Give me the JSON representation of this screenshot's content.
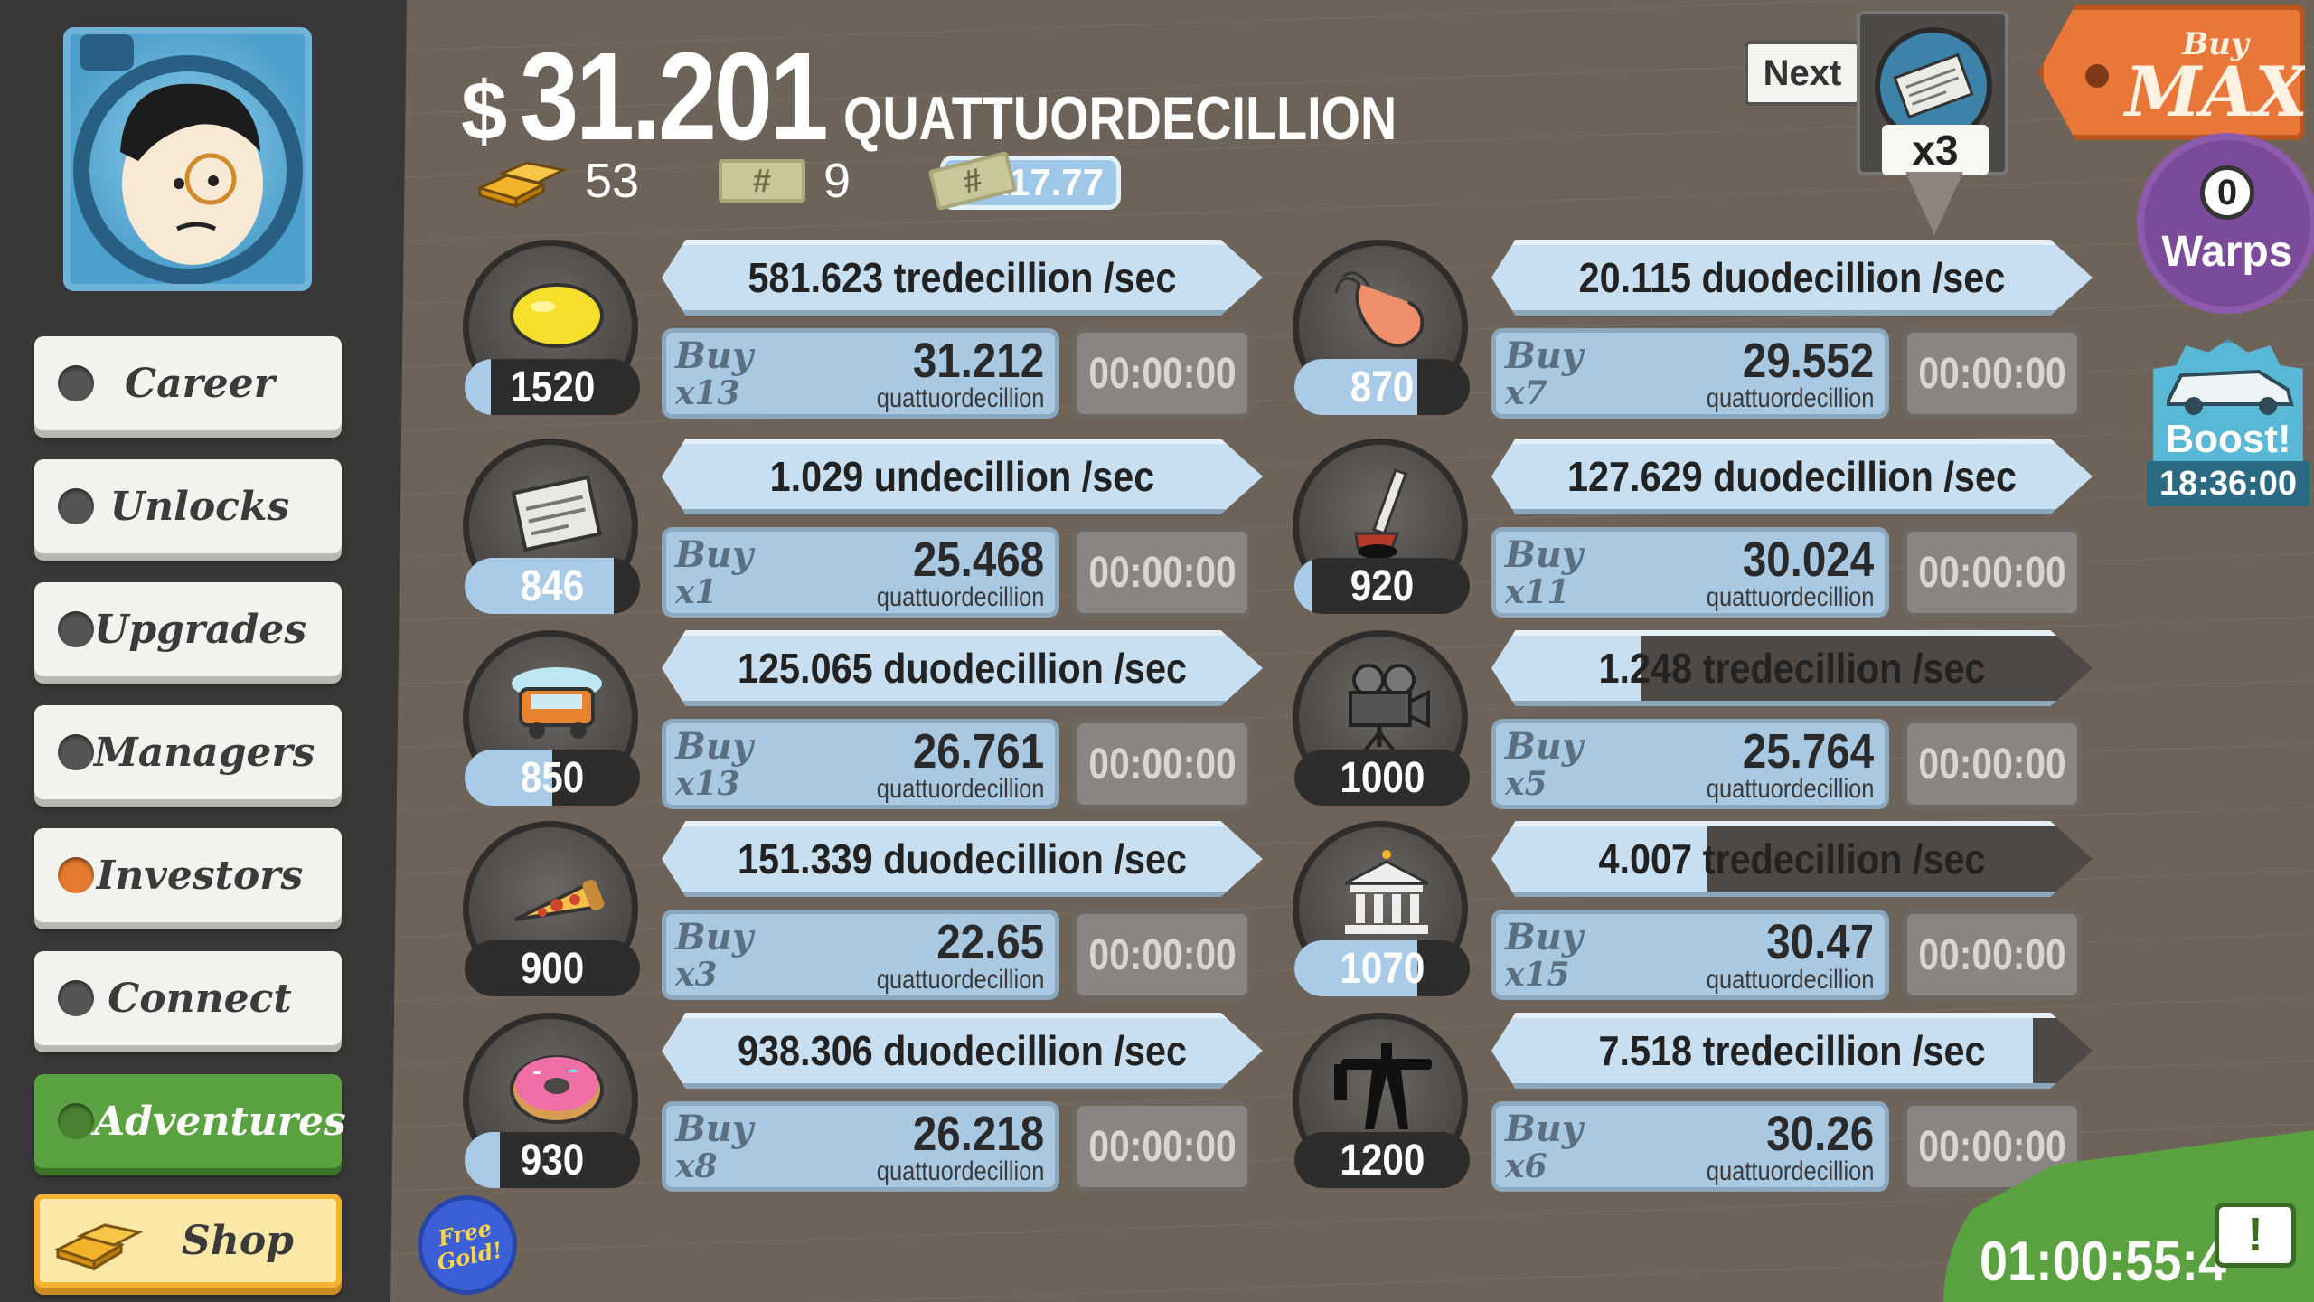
{
  "header": {
    "currency_symbol": "$",
    "money_amount": "31.201",
    "money_unit": "QUATTUORDECILLION",
    "gold_count": "53",
    "megaticket_count": "9",
    "multiplier": "x17.77",
    "ticket_symbol": "#"
  },
  "next": {
    "label": "Next",
    "multiplier": "x3",
    "icon": "newspaper-icon"
  },
  "buy_max": {
    "line1": "Buy",
    "line2": "MAX"
  },
  "warps": {
    "count": "0",
    "label": "Warps"
  },
  "boost": {
    "label": "Boost!",
    "timer": "18:36:00",
    "icon": "car-icon"
  },
  "corner_timer": "01:00:55:4",
  "sidebar": {
    "items": [
      {
        "label": "Career",
        "style": "normal"
      },
      {
        "label": "Unlocks",
        "style": "normal"
      },
      {
        "label": "Upgrades",
        "style": "normal"
      },
      {
        "label": "Managers",
        "style": "normal"
      },
      {
        "label": "Investors",
        "style": "orange"
      },
      {
        "label": "Connect",
        "style": "normal"
      },
      {
        "label": "Adventures",
        "style": "green"
      }
    ],
    "shop_label": "Shop",
    "free_gold": "Free Gold!"
  },
  "businesses": [
    {
      "icon": "lemon-icon",
      "count": "1520",
      "count_fill": 0.15,
      "revenue": "581.623 tredecillion /sec",
      "revenue_fill": 1.0,
      "buy": "Buy",
      "qty": "x13",
      "price": "31.212",
      "price_unit": "quattuordecillion",
      "timer": "00:00:00"
    },
    {
      "icon": "newspaper-icon",
      "count": "846",
      "count_fill": 0.85,
      "revenue": "1.029 undecillion /sec",
      "revenue_fill": 1.0,
      "buy": "Buy",
      "qty": "x1",
      "price": "25.468",
      "price_unit": "quattuordecillion",
      "timer": "00:00:00"
    },
    {
      "icon": "car-wash-icon",
      "count": "850",
      "count_fill": 0.5,
      "revenue": "125.065 duodecillion /sec",
      "revenue_fill": 1.0,
      "buy": "Buy",
      "qty": "x13",
      "price": "26.761",
      "price_unit": "quattuordecillion",
      "timer": "00:00:00"
    },
    {
      "icon": "pizza-icon",
      "count": "900",
      "count_fill": 0.0,
      "revenue": "151.339 duodecillion /sec",
      "revenue_fill": 1.0,
      "buy": "Buy",
      "qty": "x3",
      "price": "22.65",
      "price_unit": "quattuordecillion",
      "timer": "00:00:00"
    },
    {
      "icon": "donut-icon",
      "count": "930",
      "count_fill": 0.2,
      "revenue": "938.306 duodecillion /sec",
      "revenue_fill": 1.0,
      "buy": "Buy",
      "qty": "x8",
      "price": "26.218",
      "price_unit": "quattuordecillion",
      "timer": "00:00:00"
    },
    {
      "icon": "shrimp-icon",
      "count": "870",
      "count_fill": 0.7,
      "revenue": "20.115 duodecillion /sec",
      "revenue_fill": 1.0,
      "buy": "Buy",
      "qty": "x7",
      "price": "29.552",
      "price_unit": "quattuordecillion",
      "timer": "00:00:00"
    },
    {
      "icon": "hockey-icon",
      "count": "920",
      "count_fill": 0.1,
      "revenue": "127.629 duodecillion /sec",
      "revenue_fill": 1.0,
      "buy": "Buy",
      "qty": "x11",
      "price": "30.024",
      "price_unit": "quattuordecillion",
      "timer": "00:00:00"
    },
    {
      "icon": "movie-camera-icon",
      "count": "1000",
      "count_fill": 0.0,
      "revenue": "1.248 tredecillion /sec",
      "revenue_fill": 0.25,
      "buy": "Buy",
      "qty": "x5",
      "price": "25.764",
      "price_unit": "quattuordecillion",
      "timer": "00:00:00"
    },
    {
      "icon": "bank-icon",
      "count": "1070",
      "count_fill": 0.7,
      "revenue": "4.007 tredecillion /sec",
      "revenue_fill": 0.36,
      "buy": "Buy",
      "qty": "x15",
      "price": "30.47",
      "price_unit": "quattuordecillion",
      "timer": "00:00:00"
    },
    {
      "icon": "oil-rig-icon",
      "count": "1200",
      "count_fill": 0.0,
      "revenue": "7.518 tredecillion /sec",
      "revenue_fill": 0.9,
      "buy": "Buy",
      "qty": "x6",
      "price": "30.26",
      "price_unit": "quattuordecillion",
      "timer": "00:00:00"
    }
  ]
}
